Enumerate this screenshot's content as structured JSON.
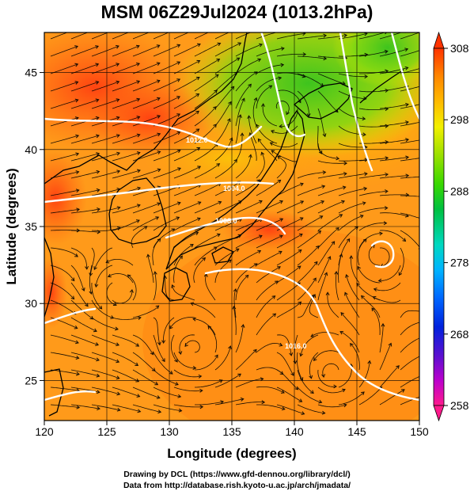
{
  "title": "MSM 06Z29Jul2024 (1013.2hPa)",
  "x_axis": {
    "label": "Longitude (degrees)",
    "range": [
      120,
      150
    ],
    "ticks": [
      120,
      125,
      130,
      135,
      140,
      145,
      150
    ]
  },
  "y_axis": {
    "label": "Latitude (degrees)",
    "range": [
      22.4,
      47.6
    ],
    "ticks": [
      25,
      30,
      35,
      40,
      45
    ]
  },
  "colorbar": {
    "range": [
      258,
      308
    ],
    "ticks": [
      "308",
      "298",
      "288",
      "278",
      "268",
      "258"
    ],
    "colors": [
      "#ff1a8c",
      "#bb00cc",
      "#5a0fd0",
      "#0022dd",
      "#0066ff",
      "#00b4ff",
      "#00d8c0",
      "#00c040",
      "#39d800",
      "#9ae000",
      "#f2f000",
      "#ffbb00",
      "#ff8800",
      "#ff5500",
      "#ff3300"
    ],
    "extend_arrows": "both"
  },
  "contours": {
    "color": "#ffffff",
    "labels": [
      "1004.0",
      "1008.0",
      "1012.0",
      "1016.0"
    ]
  },
  "credits": {
    "line1": "Drawing by DCL (https://www.gfd-dennou.org/library/dcl/)",
    "line2": "Data from http://database.rish.kyoto-u.ac.jp/arch/jmadata/"
  }
}
